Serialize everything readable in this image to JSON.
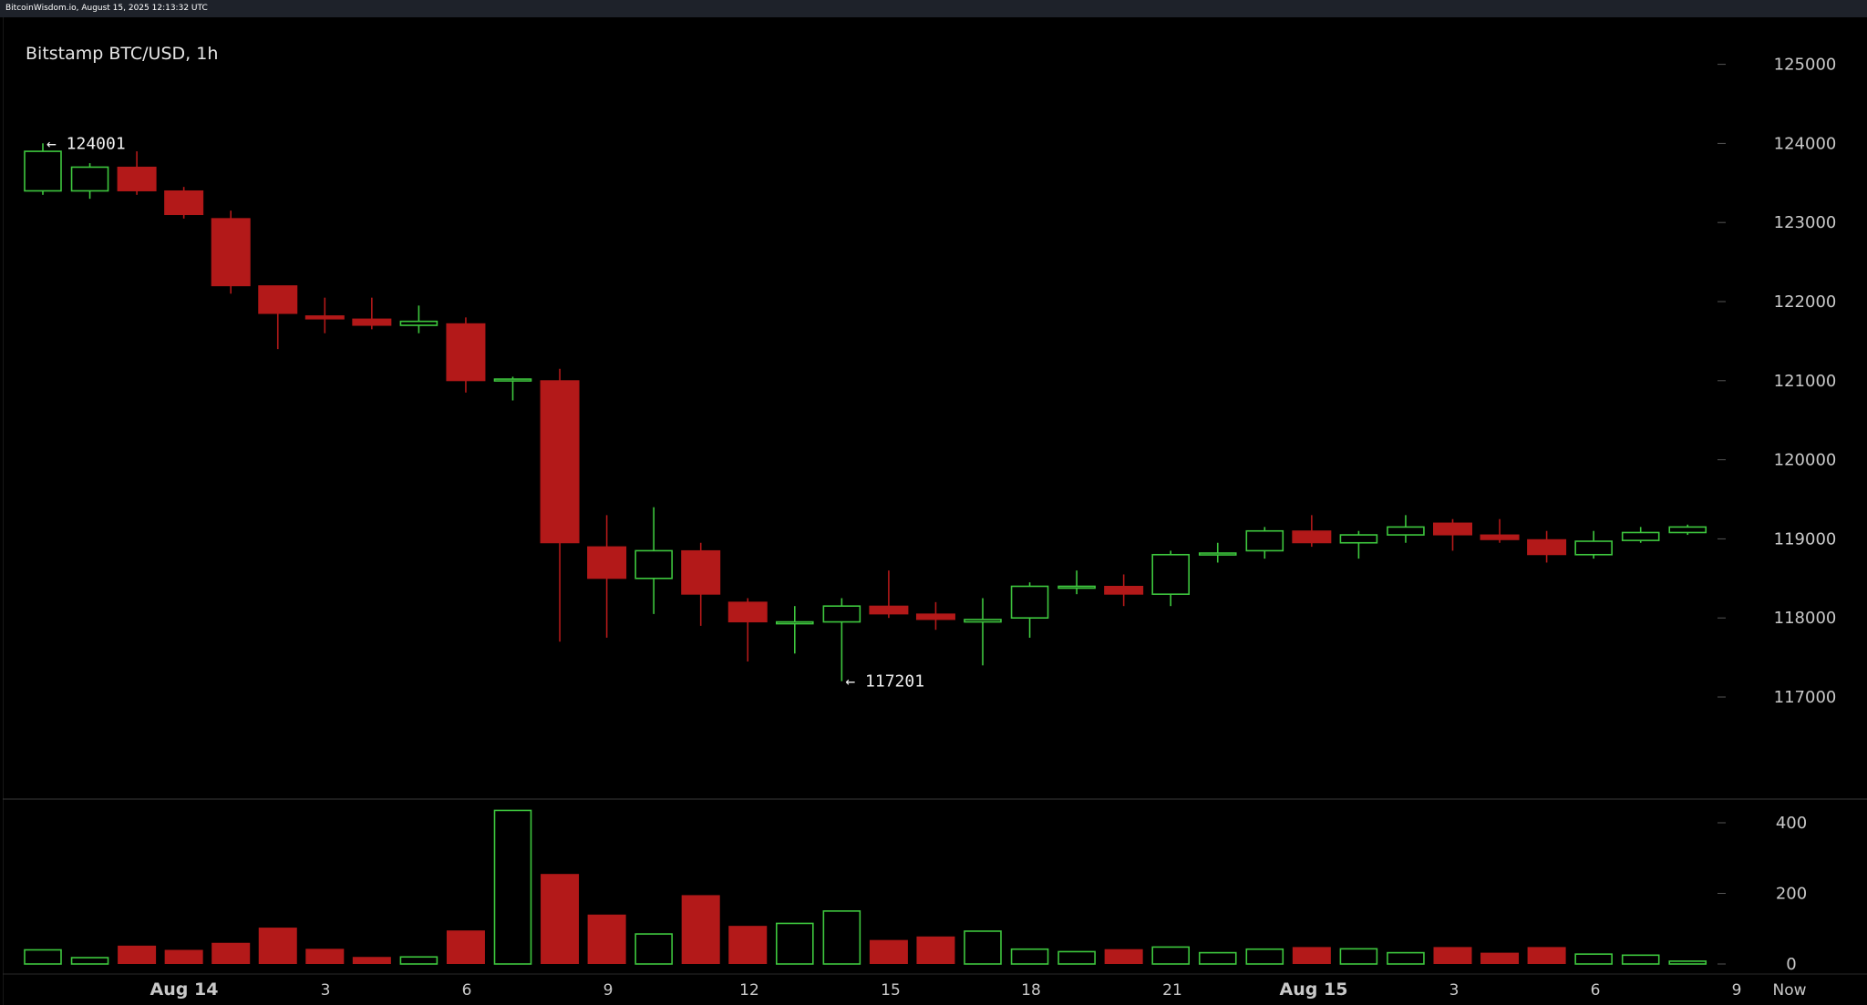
{
  "header": {
    "source_stamp": "BitcoinWisdom.io, August 15, 2025 12:13:32 UTC"
  },
  "chart_title": "Bitstamp BTC/USD, 1h",
  "colors": {
    "up": "#3ec73e",
    "down": "#b31919",
    "background": "#000000",
    "axis_text": "#c8c8c8"
  },
  "chart_data": [
    {
      "type": "candlestick",
      "title": "Bitstamp BTC/USD, 1h",
      "ylim": [
        116000,
        125500
      ],
      "y_ticks": [
        117000,
        118000,
        119000,
        120000,
        121000,
        122000,
        123000,
        124000,
        125000
      ],
      "x_tick_labels": [
        "Aug 14",
        "3",
        "6",
        "9",
        "12",
        "15",
        "18",
        "21",
        "Aug 15",
        "3",
        "6",
        "9",
        "Now"
      ],
      "annotations": [
        {
          "text": "← 124001",
          "price": 124001,
          "candle_index": 0
        },
        {
          "text": "← 117201",
          "price": 117201,
          "candle_index": 17
        }
      ],
      "candles": [
        {
          "o": 123400,
          "h": 124001,
          "l": 123350,
          "c": 123900
        },
        {
          "o": 123400,
          "h": 123750,
          "l": 123300,
          "c": 123700
        },
        {
          "o": 123700,
          "h": 123900,
          "l": 123350,
          "c": 123400
        },
        {
          "o": 123400,
          "h": 123450,
          "l": 123050,
          "c": 123100
        },
        {
          "o": 123050,
          "h": 123150,
          "l": 122100,
          "c": 122200
        },
        {
          "o": 122200,
          "h": 122200,
          "l": 121400,
          "c": 121850
        },
        {
          "o": 121820,
          "h": 122050,
          "l": 121600,
          "c": 121780
        },
        {
          "o": 121780,
          "h": 122050,
          "l": 121650,
          "c": 121700
        },
        {
          "o": 121700,
          "h": 121950,
          "l": 121600,
          "c": 121750
        },
        {
          "o": 121720,
          "h": 121800,
          "l": 120850,
          "c": 121000
        },
        {
          "o": 121000,
          "h": 121050,
          "l": 120750,
          "c": 121020
        },
        {
          "o": 121000,
          "h": 121150,
          "l": 117700,
          "c": 118950
        },
        {
          "o": 118900,
          "h": 119300,
          "l": 117750,
          "c": 118500
        },
        {
          "o": 118500,
          "h": 119400,
          "l": 118050,
          "c": 118850
        },
        {
          "o": 118850,
          "h": 118950,
          "l": 117900,
          "c": 118300
        },
        {
          "o": 118200,
          "h": 118250,
          "l": 117450,
          "c": 117950
        },
        {
          "o": 117950,
          "h": 118150,
          "l": 117550,
          "c": 117950
        },
        {
          "o": 117950,
          "h": 118250,
          "l": 117201,
          "c": 118150
        },
        {
          "o": 118150,
          "h": 118600,
          "l": 118000,
          "c": 118050
        },
        {
          "o": 118050,
          "h": 118200,
          "l": 117850,
          "c": 117980
        },
        {
          "o": 117950,
          "h": 118250,
          "l": 117400,
          "c": 117980
        },
        {
          "o": 118000,
          "h": 118450,
          "l": 117750,
          "c": 118400
        },
        {
          "o": 118380,
          "h": 118600,
          "l": 118300,
          "c": 118400
        },
        {
          "o": 118400,
          "h": 118550,
          "l": 118150,
          "c": 118300
        },
        {
          "o": 118300,
          "h": 118850,
          "l": 118150,
          "c": 118800
        },
        {
          "o": 118800,
          "h": 118950,
          "l": 118700,
          "c": 118820
        },
        {
          "o": 118850,
          "h": 119150,
          "l": 118750,
          "c": 119100
        },
        {
          "o": 119100,
          "h": 119300,
          "l": 118900,
          "c": 118950
        },
        {
          "o": 118950,
          "h": 119100,
          "l": 118750,
          "c": 119050
        },
        {
          "o": 119050,
          "h": 119300,
          "l": 118950,
          "c": 119150
        },
        {
          "o": 119200,
          "h": 119250,
          "l": 118850,
          "c": 119050
        },
        {
          "o": 119050,
          "h": 119250,
          "l": 118950,
          "c": 118990
        },
        {
          "o": 118990,
          "h": 119100,
          "l": 118700,
          "c": 118800
        },
        {
          "o": 118800,
          "h": 119100,
          "l": 118750,
          "c": 118970
        },
        {
          "o": 118980,
          "h": 119150,
          "l": 118950,
          "c": 119080
        },
        {
          "o": 119080,
          "h": 119180,
          "l": 119050,
          "c": 119150
        }
      ]
    },
    {
      "type": "bar",
      "title": "",
      "ylim": [
        0,
        440
      ],
      "y_ticks": [
        0,
        200,
        400
      ],
      "values": [
        40,
        18,
        52,
        40,
        60,
        103,
        43,
        20,
        20,
        95,
        435,
        255,
        140,
        85,
        195,
        108,
        115,
        150,
        68,
        78,
        93,
        42,
        35,
        42,
        48,
        32,
        42,
        48,
        43,
        32,
        48,
        32,
        48,
        28,
        25,
        8
      ]
    }
  ]
}
